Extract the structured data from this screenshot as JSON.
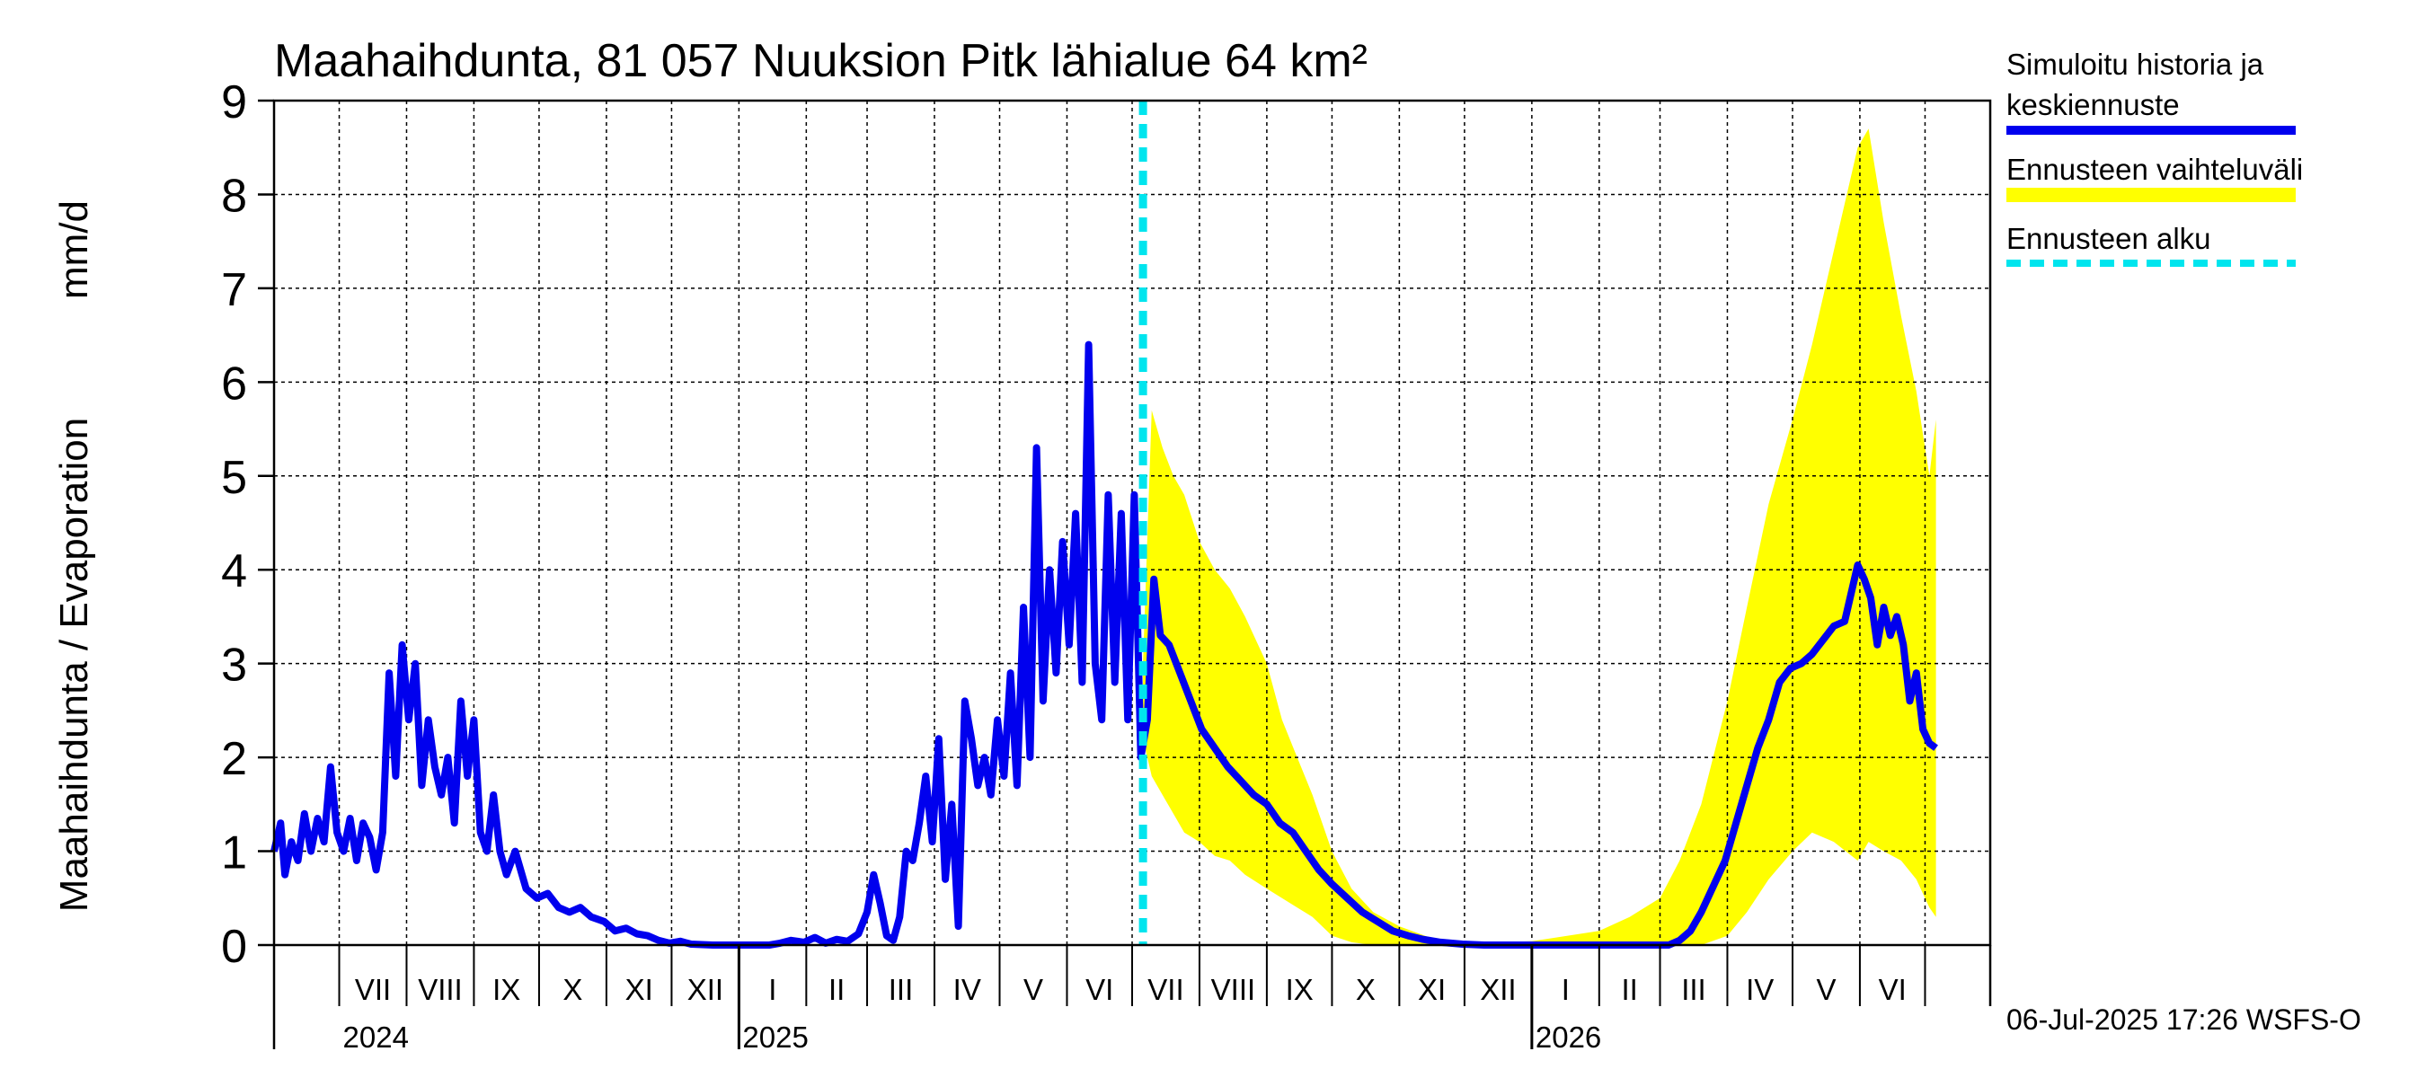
{
  "colors": {
    "background": "#ffffff",
    "history": "#0000ee",
    "band": "#ffff00",
    "forecast_start": "#00e5ee",
    "grid": "#000000"
  },
  "chart_data": {
    "type": "line",
    "title": "Maahaihdunta, 81 057 Nuuksion Pitk lähialue 64 km²",
    "ylabel_left": "Maahaihdunta / Evaporation",
    "ylabel_unit": "mm/d",
    "ylim": [
      0,
      9
    ],
    "yticks": [
      "0",
      "1",
      "2",
      "3",
      "4",
      "5",
      "6",
      "7",
      "8",
      "9"
    ],
    "grid": true,
    "legend_position": "right",
    "x_range": [
      "2024-06-01",
      "2026-07-31"
    ],
    "months": [
      {
        "label": "VII",
        "start": "2024-07-01"
      },
      {
        "label": "VIII",
        "start": "2024-08-01"
      },
      {
        "label": "IX",
        "start": "2024-09-01"
      },
      {
        "label": "X",
        "start": "2024-10-01"
      },
      {
        "label": "XI",
        "start": "2024-11-01"
      },
      {
        "label": "XII",
        "start": "2024-12-01"
      },
      {
        "label": "I",
        "start": "2025-01-01"
      },
      {
        "label": "II",
        "start": "2025-02-01"
      },
      {
        "label": "III",
        "start": "2025-03-01"
      },
      {
        "label": "IV",
        "start": "2025-04-01"
      },
      {
        "label": "V",
        "start": "2025-05-01"
      },
      {
        "label": "VI",
        "start": "2025-06-01"
      },
      {
        "label": "VII",
        "start": "2025-07-01"
      },
      {
        "label": "VIII",
        "start": "2025-08-01"
      },
      {
        "label": "IX",
        "start": "2025-09-01"
      },
      {
        "label": "X",
        "start": "2025-10-01"
      },
      {
        "label": "XI",
        "start": "2025-11-01"
      },
      {
        "label": "XII",
        "start": "2025-12-01"
      },
      {
        "label": "I",
        "start": "2026-01-01"
      },
      {
        "label": "II",
        "start": "2026-02-01"
      },
      {
        "label": "III",
        "start": "2026-03-01"
      },
      {
        "label": "IV",
        "start": "2026-04-01"
      },
      {
        "label": "V",
        "start": "2026-05-01"
      },
      {
        "label": "VI",
        "start": "2026-06-01"
      },
      {
        "label": "",
        "start": "2026-07-01"
      }
    ],
    "years": [
      {
        "label": "2024",
        "date": "2024-07-01"
      },
      {
        "label": "2025",
        "date": "2025-01-01"
      },
      {
        "label": "2026",
        "date": "2026-01-01"
      }
    ],
    "forecast_start": "2025-07-06",
    "series": [
      {
        "name": "Simuloitu historia ja keskiennuste",
        "points": [
          [
            "2024-06-01",
            1.0
          ],
          [
            "2024-06-04",
            1.3
          ],
          [
            "2024-06-06",
            0.75
          ],
          [
            "2024-06-09",
            1.1
          ],
          [
            "2024-06-12",
            0.9
          ],
          [
            "2024-06-15",
            1.4
          ],
          [
            "2024-06-18",
            1.0
          ],
          [
            "2024-06-21",
            1.35
          ],
          [
            "2024-06-24",
            1.1
          ],
          [
            "2024-06-27",
            1.9
          ],
          [
            "2024-06-30",
            1.2
          ],
          [
            "2024-07-03",
            1.0
          ],
          [
            "2024-07-06",
            1.35
          ],
          [
            "2024-07-09",
            0.9
          ],
          [
            "2024-07-12",
            1.3
          ],
          [
            "2024-07-15",
            1.15
          ],
          [
            "2024-07-18",
            0.8
          ],
          [
            "2024-07-21",
            1.2
          ],
          [
            "2024-07-24",
            2.9
          ],
          [
            "2024-07-27",
            1.8
          ],
          [
            "2024-07-30",
            3.2
          ],
          [
            "2024-08-02",
            2.4
          ],
          [
            "2024-08-05",
            3.0
          ],
          [
            "2024-08-08",
            1.7
          ],
          [
            "2024-08-11",
            2.4
          ],
          [
            "2024-08-14",
            1.9
          ],
          [
            "2024-08-17",
            1.6
          ],
          [
            "2024-08-20",
            2.0
          ],
          [
            "2024-08-23",
            1.3
          ],
          [
            "2024-08-26",
            2.6
          ],
          [
            "2024-08-29",
            1.8
          ],
          [
            "2024-09-01",
            2.4
          ],
          [
            "2024-09-04",
            1.2
          ],
          [
            "2024-09-07",
            1.0
          ],
          [
            "2024-09-10",
            1.6
          ],
          [
            "2024-09-13",
            1.0
          ],
          [
            "2024-09-16",
            0.75
          ],
          [
            "2024-09-20",
            1.0
          ],
          [
            "2024-09-25",
            0.6
          ],
          [
            "2024-09-30",
            0.5
          ],
          [
            "2024-10-05",
            0.55
          ],
          [
            "2024-10-10",
            0.4
          ],
          [
            "2024-10-15",
            0.35
          ],
          [
            "2024-10-20",
            0.4
          ],
          [
            "2024-10-25",
            0.3
          ],
          [
            "2024-10-31",
            0.25
          ],
          [
            "2024-11-05",
            0.15
          ],
          [
            "2024-11-10",
            0.18
          ],
          [
            "2024-11-15",
            0.12
          ],
          [
            "2024-11-20",
            0.1
          ],
          [
            "2024-11-25",
            0.05
          ],
          [
            "2024-11-30",
            0.02
          ],
          [
            "2024-12-05",
            0.04
          ],
          [
            "2024-12-10",
            0.01
          ],
          [
            "2024-12-20",
            0.0
          ],
          [
            "2025-01-15",
            0.0
          ],
          [
            "2025-01-20",
            0.02
          ],
          [
            "2025-01-25",
            0.05
          ],
          [
            "2025-01-31",
            0.03
          ],
          [
            "2025-02-05",
            0.08
          ],
          [
            "2025-02-10",
            0.02
          ],
          [
            "2025-02-15",
            0.06
          ],
          [
            "2025-02-20",
            0.04
          ],
          [
            "2025-02-25",
            0.12
          ],
          [
            "2025-03-01",
            0.35
          ],
          [
            "2025-03-04",
            0.75
          ],
          [
            "2025-03-07",
            0.45
          ],
          [
            "2025-03-10",
            0.1
          ],
          [
            "2025-03-13",
            0.05
          ],
          [
            "2025-03-16",
            0.3
          ],
          [
            "2025-03-19",
            1.0
          ],
          [
            "2025-03-22",
            0.9
          ],
          [
            "2025-03-25",
            1.3
          ],
          [
            "2025-03-28",
            1.8
          ],
          [
            "2025-03-31",
            1.1
          ],
          [
            "2025-04-03",
            2.2
          ],
          [
            "2025-04-06",
            0.7
          ],
          [
            "2025-04-09",
            1.5
          ],
          [
            "2025-04-12",
            0.2
          ],
          [
            "2025-04-15",
            2.6
          ],
          [
            "2025-04-18",
            2.2
          ],
          [
            "2025-04-21",
            1.7
          ],
          [
            "2025-04-24",
            2.0
          ],
          [
            "2025-04-27",
            1.6
          ],
          [
            "2025-04-30",
            2.4
          ],
          [
            "2025-05-03",
            1.8
          ],
          [
            "2025-05-06",
            2.9
          ],
          [
            "2025-05-09",
            1.7
          ],
          [
            "2025-05-12",
            3.6
          ],
          [
            "2025-05-15",
            2.0
          ],
          [
            "2025-05-18",
            5.3
          ],
          [
            "2025-05-21",
            2.6
          ],
          [
            "2025-05-24",
            4.0
          ],
          [
            "2025-05-27",
            2.9
          ],
          [
            "2025-05-30",
            4.3
          ],
          [
            "2025-06-02",
            3.2
          ],
          [
            "2025-06-05",
            4.6
          ],
          [
            "2025-06-08",
            2.8
          ],
          [
            "2025-06-11",
            6.4
          ],
          [
            "2025-06-14",
            3.0
          ],
          [
            "2025-06-17",
            2.4
          ],
          [
            "2025-06-20",
            4.8
          ],
          [
            "2025-06-23",
            2.8
          ],
          [
            "2025-06-26",
            4.6
          ],
          [
            "2025-06-29",
            2.4
          ],
          [
            "2025-07-02",
            4.8
          ],
          [
            "2025-07-05",
            2.0
          ],
          [
            "2025-07-08",
            2.4
          ],
          [
            "2025-07-11",
            3.9
          ],
          [
            "2025-07-14",
            3.3
          ],
          [
            "2025-07-18",
            3.2
          ],
          [
            "2025-07-23",
            2.9
          ],
          [
            "2025-07-28",
            2.6
          ],
          [
            "2025-08-02",
            2.3
          ],
          [
            "2025-08-08",
            2.1
          ],
          [
            "2025-08-14",
            1.9
          ],
          [
            "2025-08-20",
            1.75
          ],
          [
            "2025-08-26",
            1.6
          ],
          [
            "2025-09-01",
            1.5
          ],
          [
            "2025-09-07",
            1.3
          ],
          [
            "2025-09-13",
            1.2
          ],
          [
            "2025-09-19",
            1.0
          ],
          [
            "2025-09-25",
            0.8
          ],
          [
            "2025-10-01",
            0.65
          ],
          [
            "2025-10-08",
            0.5
          ],
          [
            "2025-10-15",
            0.35
          ],
          [
            "2025-10-22",
            0.25
          ],
          [
            "2025-10-29",
            0.15
          ],
          [
            "2025-11-05",
            0.1
          ],
          [
            "2025-11-12",
            0.06
          ],
          [
            "2025-11-20",
            0.03
          ],
          [
            "2025-11-30",
            0.01
          ],
          [
            "2025-12-10",
            0.0
          ],
          [
            "2026-03-05",
            0.0
          ],
          [
            "2026-03-10",
            0.05
          ],
          [
            "2026-03-15",
            0.15
          ],
          [
            "2026-03-20",
            0.35
          ],
          [
            "2026-03-25",
            0.6
          ],
          [
            "2026-03-31",
            0.9
          ],
          [
            "2026-04-05",
            1.3
          ],
          [
            "2026-04-10",
            1.7
          ],
          [
            "2026-04-15",
            2.1
          ],
          [
            "2026-04-20",
            2.4
          ],
          [
            "2026-04-25",
            2.8
          ],
          [
            "2026-04-30",
            2.95
          ],
          [
            "2026-05-05",
            3.0
          ],
          [
            "2026-05-10",
            3.1
          ],
          [
            "2026-05-15",
            3.25
          ],
          [
            "2026-05-20",
            3.4
          ],
          [
            "2026-05-25",
            3.45
          ],
          [
            "2026-05-31",
            4.05
          ],
          [
            "2026-06-03",
            3.9
          ],
          [
            "2026-06-06",
            3.7
          ],
          [
            "2026-06-09",
            3.2
          ],
          [
            "2026-06-12",
            3.6
          ],
          [
            "2026-06-15",
            3.3
          ],
          [
            "2026-06-18",
            3.5
          ],
          [
            "2026-06-21",
            3.2
          ],
          [
            "2026-06-24",
            2.6
          ],
          [
            "2026-06-27",
            2.9
          ],
          [
            "2026-06-30",
            2.3
          ],
          [
            "2026-07-03",
            2.15
          ],
          [
            "2026-07-06",
            2.1
          ]
        ]
      }
    ],
    "band": {
      "name": "Ennusteen vaihteluväli",
      "points": [
        [
          "2025-07-06",
          2.2,
          3.0
        ],
        [
          "2025-07-10",
          1.8,
          5.7
        ],
        [
          "2025-07-15",
          1.6,
          5.3
        ],
        [
          "2025-07-20",
          1.4,
          5.0
        ],
        [
          "2025-07-25",
          1.2,
          4.8
        ],
        [
          "2025-08-01",
          1.1,
          4.3
        ],
        [
          "2025-08-08",
          0.95,
          4.0
        ],
        [
          "2025-08-15",
          0.9,
          3.8
        ],
        [
          "2025-08-22",
          0.75,
          3.5
        ],
        [
          "2025-09-01",
          0.6,
          3.0
        ],
        [
          "2025-09-08",
          0.5,
          2.4
        ],
        [
          "2025-09-15",
          0.4,
          2.0
        ],
        [
          "2025-09-22",
          0.3,
          1.6
        ],
        [
          "2025-10-01",
          0.1,
          1.0
        ],
        [
          "2025-10-10",
          0.03,
          0.6
        ],
        [
          "2025-10-20",
          0.0,
          0.35
        ],
        [
          "2025-11-01",
          0.0,
          0.2
        ],
        [
          "2025-11-15",
          0.0,
          0.08
        ],
        [
          "2025-12-01",
          0.0,
          0.02
        ],
        [
          "2026-01-01",
          0.0,
          0.04
        ],
        [
          "2026-02-01",
          0.0,
          0.15
        ],
        [
          "2026-02-15",
          0.0,
          0.3
        ],
        [
          "2026-03-01",
          0.0,
          0.5
        ],
        [
          "2026-03-10",
          0.0,
          0.9
        ],
        [
          "2026-03-20",
          0.0,
          1.5
        ],
        [
          "2026-04-01",
          0.1,
          2.6
        ],
        [
          "2026-04-10",
          0.35,
          3.6
        ],
        [
          "2026-04-20",
          0.7,
          4.7
        ],
        [
          "2026-05-01",
          1.0,
          5.6
        ],
        [
          "2026-05-10",
          1.2,
          6.4
        ],
        [
          "2026-05-20",
          1.1,
          7.4
        ],
        [
          "2026-05-31",
          0.9,
          8.5
        ],
        [
          "2026-06-05",
          1.1,
          8.7
        ],
        [
          "2026-06-12",
          1.0,
          7.7
        ],
        [
          "2026-06-20",
          0.9,
          6.7
        ],
        [
          "2026-06-27",
          0.7,
          5.9
        ],
        [
          "2026-07-03",
          0.4,
          5.0
        ],
        [
          "2026-07-06",
          0.3,
          5.6
        ]
      ]
    }
  },
  "legend": {
    "history_line1": "Simuloitu historia ja",
    "history_line2": "keskiennuste",
    "band": "Ennusteen vaihteluväli",
    "forecast_start": "Ennusteen alku"
  },
  "footer_text": "06-Jul-2025 17:26 WSFS-O"
}
